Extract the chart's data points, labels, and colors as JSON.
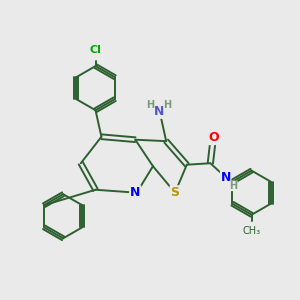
{
  "bg_color": "#eaeaea",
  "bond_color": "#2d6030",
  "atom_colors": {
    "N": "#0000ff",
    "S": "#b8960a",
    "O": "#ff0000",
    "Cl": "#00aa00",
    "C": "#2d6030",
    "H": "#7a9a7a",
    "NH2_N": "#5555cc",
    "NH2_H": "#7a9a7a"
  },
  "font_size": 8,
  "bond_lw": 1.4
}
